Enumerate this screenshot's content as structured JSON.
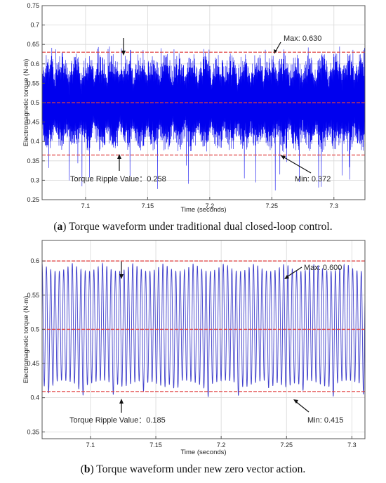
{
  "chart_data": [
    {
      "type": "line",
      "caption_bold": "a",
      "caption_rest": "Torque waveform under traditional dual closed-loop control.",
      "xlabel": "Time (seconds)",
      "ylabel": "Electromagnetic torque (N·m)",
      "xlim": [
        7.065,
        7.325
      ],
      "ylim": [
        0.25,
        0.75
      ],
      "xticks": [
        7.1,
        7.15,
        7.2,
        7.25,
        7.3
      ],
      "yticks": [
        0.25,
        0.3,
        0.35,
        0.4,
        0.45,
        0.5,
        0.55,
        0.6,
        0.65,
        0.7,
        0.75
      ],
      "grid": true,
      "series": [
        {
          "color": "#0000ee",
          "mean": 0.5,
          "upper": 0.63,
          "lower": 0.372,
          "burst_period_s": 0.0105,
          "dense": true
        }
      ],
      "reference_lines": [
        {
          "y": 0.63,
          "color": "#e04040",
          "style": "dashed"
        },
        {
          "y": 0.5,
          "color": "#e04040",
          "style": "dashed"
        },
        {
          "y": 0.365,
          "color": "#e04040",
          "style": "dashed"
        }
      ],
      "annotations": {
        "max": "Max: 0.630",
        "min": "Min: 0.372",
        "ripple": "Torque Ripple Value：0.258"
      }
    },
    {
      "type": "line",
      "caption_bold": "b",
      "caption_rest": "Torque waveform under new zero vector action.",
      "xlabel": "Time (seconds)",
      "ylabel": "Electromagnetic torque (N·m)",
      "xlim": [
        7.063,
        7.31
      ],
      "ylim": [
        0.34,
        0.63
      ],
      "xticks": [
        7.1,
        7.15,
        7.2,
        7.25,
        7.3
      ],
      "yticks": [
        0.35,
        0.4,
        0.45,
        0.5,
        0.55,
        0.6
      ],
      "grid": true,
      "series": [
        {
          "color": "#4040cc",
          "mean": 0.5,
          "upper": 0.6,
          "lower": 0.415,
          "osc_period_s": 0.0033,
          "dense": false
        }
      ],
      "reference_lines": [
        {
          "y": 0.6,
          "color": "#e04040",
          "style": "dashed"
        },
        {
          "y": 0.5,
          "color": "#e04040",
          "style": "dashed"
        },
        {
          "y": 0.409,
          "color": "#e04040",
          "style": "dashed"
        }
      ],
      "annotations": {
        "max": "Max: 0.600",
        "min": "Min: 0.415",
        "ripple": "Torque Ripple Value：0.185"
      }
    }
  ]
}
